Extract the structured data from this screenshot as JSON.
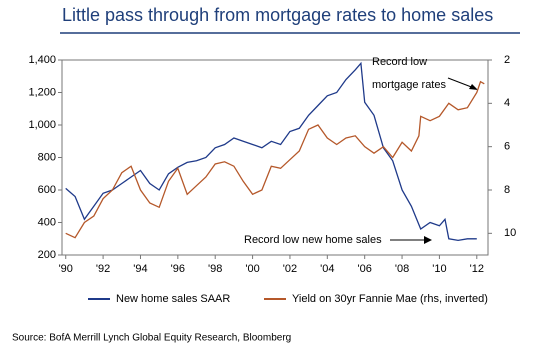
{
  "chart_data": {
    "type": "line",
    "title": "Little pass through from mortgage rates to home  sales",
    "source": "Source: BofA Merrill Lynch Global Equity Research, Bloomberg",
    "annotations": [
      "Record low",
      "mortgage rates",
      "Record low  new home sales"
    ],
    "xlim": [
      1989.8,
      2012.6
    ],
    "xticks": [
      {
        "value": 1990,
        "label": "'90"
      },
      {
        "value": 1992,
        "label": "'92"
      },
      {
        "value": 1994,
        "label": "'94"
      },
      {
        "value": 1996,
        "label": "'96"
      },
      {
        "value": 1998,
        "label": "'98"
      },
      {
        "value": 2000,
        "label": "'00"
      },
      {
        "value": 2002,
        "label": "'02"
      },
      {
        "value": 2004,
        "label": "'04"
      },
      {
        "value": 2006,
        "label": "'06"
      },
      {
        "value": 2008,
        "label": "'08"
      },
      {
        "value": 2010,
        "label": "'10"
      },
      {
        "value": 2012,
        "label": "'12"
      }
    ],
    "ylim": [
      200,
      1400
    ],
    "yticks": [
      200,
      400,
      600,
      800,
      {
        "value": 1000,
        "label": "1,000"
      },
      {
        "value": 1200,
        "label": "1,200"
      },
      {
        "value": 1400,
        "label": "1,400"
      }
    ],
    "y2lim": [
      11,
      2
    ],
    "y2ticks": [
      2,
      4,
      6,
      8,
      10
    ],
    "series": [
      {
        "name": "New home sales SAAR",
        "color": "#1f3a8a",
        "x": [
          1990,
          1990.5,
          1991,
          1991.5,
          1992,
          1992.5,
          1993,
          1993.5,
          1994,
          1994.5,
          1995,
          1995.5,
          1996,
          1996.5,
          1997,
          1997.5,
          1998,
          1998.5,
          1999,
          1999.5,
          2000,
          2000.5,
          2001,
          2001.5,
          2002,
          2002.5,
          2003,
          2003.5,
          2004,
          2004.5,
          2005,
          2005.5,
          2005.8,
          2006,
          2006.5,
          2007,
          2007.5,
          2008,
          2008.5,
          2009,
          2009.5,
          2010,
          2010.3,
          2010.5,
          2011,
          2011.5,
          2012
        ],
        "values": [
          610,
          560,
          420,
          500,
          580,
          600,
          640,
          680,
          720,
          640,
          600,
          700,
          740,
          770,
          780,
          800,
          860,
          880,
          920,
          900,
          880,
          860,
          900,
          880,
          960,
          980,
          1060,
          1120,
          1180,
          1200,
          1280,
          1340,
          1380,
          1140,
          1060,
          860,
          780,
          600,
          500,
          360,
          400,
          380,
          420,
          300,
          290,
          300,
          300
        ]
      },
      {
        "name": "Yield on 30yr Fannie Mae (rhs, inverted)",
        "color": "#b5582a",
        "axis": "y2",
        "x": [
          1990,
          1990.5,
          1991,
          1991.5,
          1992,
          1992.5,
          1993,
          1993.5,
          1994,
          1994.5,
          1995,
          1995.5,
          1996,
          1996.5,
          1997,
          1997.5,
          1998,
          1998.5,
          1999,
          1999.5,
          2000,
          2000.5,
          2001,
          2001.5,
          2002,
          2002.5,
          2003,
          2003.5,
          2004,
          2004.5,
          2005,
          2005.5,
          2006,
          2006.5,
          2007,
          2007.5,
          2008,
          2008.5,
          2008.9,
          2009,
          2009.5,
          2010,
          2010.5,
          2011,
          2011.5,
          2012,
          2012.2,
          2012.4
        ],
        "values": [
          10.0,
          10.2,
          9.5,
          9.2,
          8.4,
          8.0,
          7.2,
          6.9,
          8.0,
          8.6,
          8.8,
          7.6,
          7.0,
          8.2,
          7.8,
          7.4,
          6.8,
          6.7,
          6.9,
          7.6,
          8.2,
          8.0,
          6.9,
          7.0,
          6.6,
          6.2,
          5.2,
          5.0,
          5.6,
          5.9,
          5.6,
          5.5,
          6.0,
          6.3,
          6.0,
          6.5,
          5.8,
          6.2,
          5.5,
          4.6,
          4.8,
          4.6,
          4.0,
          4.3,
          4.2,
          3.5,
          3.0,
          3.1
        ]
      }
    ]
  }
}
